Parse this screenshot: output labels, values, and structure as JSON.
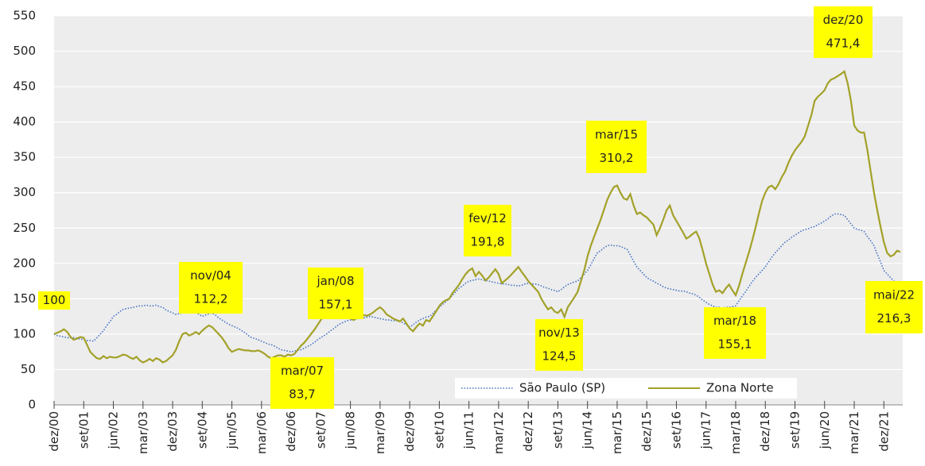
{
  "chart_data": {
    "type": "line",
    "categories": [
      "dez/00",
      null,
      null,
      null,
      null,
      null,
      null,
      null,
      null,
      "set/01",
      null,
      null,
      null,
      null,
      null,
      null,
      null,
      null,
      "jun/02",
      null,
      null,
      null,
      null,
      null,
      null,
      null,
      null,
      "mar/03",
      null,
      null,
      null,
      null,
      null,
      null,
      null,
      null,
      "dez/03",
      null,
      null,
      null,
      null,
      null,
      null,
      null,
      null,
      "set/04",
      null,
      null,
      null,
      null,
      null,
      null,
      null,
      null,
      "jun/05",
      null,
      null,
      null,
      null,
      null,
      null,
      null,
      null,
      "mar/06",
      null,
      null,
      null,
      null,
      null,
      null,
      null,
      null,
      "dez/06",
      null,
      null,
      null,
      null,
      null,
      null,
      null,
      null,
      "set/07",
      null,
      null,
      null,
      null,
      null,
      null,
      null,
      null,
      "jun/08",
      null,
      null,
      null,
      null,
      null,
      null,
      null,
      null,
      "mar/09",
      null,
      null,
      null,
      null,
      null,
      null,
      null,
      null,
      "dez/09",
      null,
      null,
      null,
      null,
      null,
      null,
      null,
      null,
      "set/10",
      null,
      null,
      null,
      null,
      null,
      null,
      null,
      null,
      "jun/11",
      null,
      null,
      null,
      null,
      null,
      null,
      null,
      null,
      "mar/12",
      null,
      null,
      null,
      null,
      null,
      null,
      null,
      null,
      "dez/12",
      null,
      null,
      null,
      null,
      null,
      null,
      null,
      null,
      "set/13",
      null,
      null,
      null,
      null,
      null,
      null,
      null,
      null,
      "jun/14",
      null,
      null,
      null,
      null,
      null,
      null,
      null,
      null,
      "mar/15",
      null,
      null,
      null,
      null,
      null,
      null,
      null,
      null,
      "dez/15",
      null,
      null,
      null,
      null,
      null,
      null,
      null,
      null,
      "set/16",
      null,
      null,
      null,
      null,
      null,
      null,
      null,
      null,
      "jun/17",
      null,
      null,
      null,
      null,
      null,
      null,
      null,
      null,
      "mar/18",
      null,
      null,
      null,
      null,
      null,
      null,
      null,
      null,
      "dez/18",
      null,
      null,
      null,
      null,
      null,
      null,
      null,
      null,
      "set/19",
      null,
      null,
      null,
      null,
      null,
      null,
      null,
      null,
      "jun/20",
      null,
      null,
      null,
      null,
      null,
      null,
      null,
      null,
      "mar/21",
      null,
      null,
      null,
      null,
      null,
      null,
      null,
      null,
      "dez/21",
      null,
      null,
      null,
      null,
      null
    ],
    "series": [
      {
        "name": "São Paulo (SP)",
        "color": "#4472c4",
        "dash": "dotted",
        "values": [
          100,
          98,
          97,
          96,
          95,
          95,
          95,
          94,
          93,
          92,
          91,
          91,
          90,
          95,
          100,
          105,
          112,
          118,
          125,
          128,
          132,
          135,
          136,
          137,
          138,
          139,
          140,
          140,
          141,
          140,
          140,
          141,
          139,
          138,
          134,
          132,
          130,
          128,
          129,
          130,
          132,
          134,
          135,
          132,
          128,
          125,
          127,
          129,
          130,
          127,
          123,
          120,
          117,
          114,
          112,
          110,
          108,
          105,
          102,
          98,
          95,
          94,
          92,
          90,
          88,
          86,
          85,
          83,
          80,
          78,
          77,
          76,
          75,
          76,
          77,
          78,
          80,
          83,
          85,
          88,
          92,
          95,
          98,
          101,
          105,
          108,
          112,
          115,
          117,
          119,
          120,
          121,
          122,
          122,
          123,
          124,
          125,
          124,
          123,
          122,
          121,
          120,
          120,
          119,
          119,
          118,
          116,
          113,
          110,
          113,
          117,
          120,
          122,
          124,
          125,
          129,
          134,
          138,
          142,
          146,
          150,
          155,
          160,
          165,
          168,
          172,
          175,
          176,
          177,
          178,
          177,
          176,
          175,
          174,
          173,
          172,
          171,
          171,
          170,
          169,
          169,
          168,
          169,
          171,
          172,
          171,
          171,
          170,
          168,
          166,
          165,
          163,
          162,
          160,
          163,
          167,
          170,
          172,
          174,
          175,
          180,
          185,
          190,
          198,
          207,
          215,
          218,
          222,
          225,
          226,
          225,
          225,
          224,
          222,
          220,
          212,
          203,
          195,
          190,
          185,
          180,
          177,
          175,
          172,
          170,
          167,
          165,
          164,
          163,
          162,
          161,
          161,
          160,
          158,
          157,
          155,
          152,
          148,
          145,
          142,
          140,
          138,
          138,
          137,
          138,
          138,
          139,
          140,
          147,
          154,
          160,
          167,
          174,
          180,
          185,
          190,
          195,
          202,
          209,
          215,
          220,
          225,
          230,
          233,
          237,
          240,
          243,
          246,
          248,
          249,
          251,
          252,
          255,
          257,
          260,
          263,
          267,
          270,
          270,
          269,
          268,
          262,
          256,
          250,
          248,
          247,
          245,
          238,
          232,
          225,
          213,
          202,
          190,
          185,
          180,
          175,
          172,
          170
        ]
      },
      {
        "name": "Zona Norte",
        "color": "#a3a128",
        "dash": "solid",
        "values": [
          100,
          102,
          104,
          107,
          103,
          96,
          92,
          94,
          96,
          95,
          85,
          75,
          70,
          66,
          65,
          69,
          66,
          68,
          67,
          67,
          69,
          71,
          70,
          67,
          65,
          68,
          63,
          60,
          62,
          65,
          62,
          66,
          64,
          60,
          62,
          66,
          70,
          78,
          90,
          100,
          102,
          98,
          100,
          103,
          100,
          105,
          109,
          112.2,
          110,
          105,
          100,
          95,
          88,
          80,
          75,
          77,
          79,
          78,
          77,
          77,
          76,
          76,
          77,
          75,
          72,
          68,
          66,
          68,
          70,
          70,
          68,
          71,
          70,
          72,
          78,
          83.7,
          88,
          94,
          100,
          106,
          113,
          120,
          126,
          133,
          140,
          157.1,
          150,
          138,
          130,
          125,
          122,
          120,
          123,
          125,
          127,
          126,
          128,
          131,
          135,
          138,
          134,
          128,
          125,
          122,
          120,
          118,
          122,
          115,
          108,
          104,
          110,
          115,
          112,
          120,
          118,
          125,
          132,
          140,
          145,
          148,
          150,
          158,
          164,
          170,
          178,
          185,
          190,
          193,
          182,
          188,
          183,
          176,
          180,
          186,
          191.8,
          185,
          172,
          176,
          180,
          185,
          190,
          195,
          188,
          182,
          175,
          170,
          165,
          160,
          150,
          142,
          135,
          138,
          132,
          130,
          135,
          124.5,
          138,
          145,
          152,
          160,
          175,
          190,
          210,
          225,
          238,
          250,
          262,
          276,
          290,
          300,
          308,
          310.2,
          300,
          292,
          290,
          298,
          282,
          270,
          272,
          268,
          265,
          260,
          255,
          240,
          250,
          262,
          275,
          282,
          268,
          260,
          252,
          244,
          235,
          238,
          242,
          245,
          235,
          218,
          200,
          185,
          170,
          160,
          162,
          158,
          165,
          170,
          162,
          155.1,
          168,
          185,
          200,
          215,
          232,
          250,
          270,
          288,
          300,
          308,
          310,
          305,
          312,
          322,
          330,
          342,
          352,
          360,
          366,
          372,
          380,
          395,
          410,
          430,
          436,
          440,
          445,
          455,
          460,
          462,
          465,
          468,
          471.4,
          455,
          430,
          395,
          388,
          385,
          385,
          360,
          330,
          300,
          275,
          252,
          230,
          215,
          210,
          212,
          218,
          216.3
        ]
      }
    ],
    "annotations": [
      {
        "text": "100"
      },
      {
        "x": "nov/04",
        "text": "112,2"
      },
      {
        "x": "mar/07",
        "text": "83,7"
      },
      {
        "x": "jan/08",
        "text": "157,1"
      },
      {
        "x": "fev/12",
        "text": "191,8"
      },
      {
        "x": "nov/13",
        "text": "124,5"
      },
      {
        "x": "mar/15",
        "text": "310,2"
      },
      {
        "x": "mar/18",
        "text": "155,1"
      },
      {
        "x": "dez/20",
        "text": "471,4"
      },
      {
        "x": "mai/22",
        "text": "216,3"
      }
    ],
    "ylim": [
      0,
      550
    ],
    "yticks": [
      0,
      50,
      100,
      150,
      200,
      250,
      300,
      350,
      400,
      450,
      500,
      550
    ],
    "grid": true,
    "legend": "bottom"
  }
}
